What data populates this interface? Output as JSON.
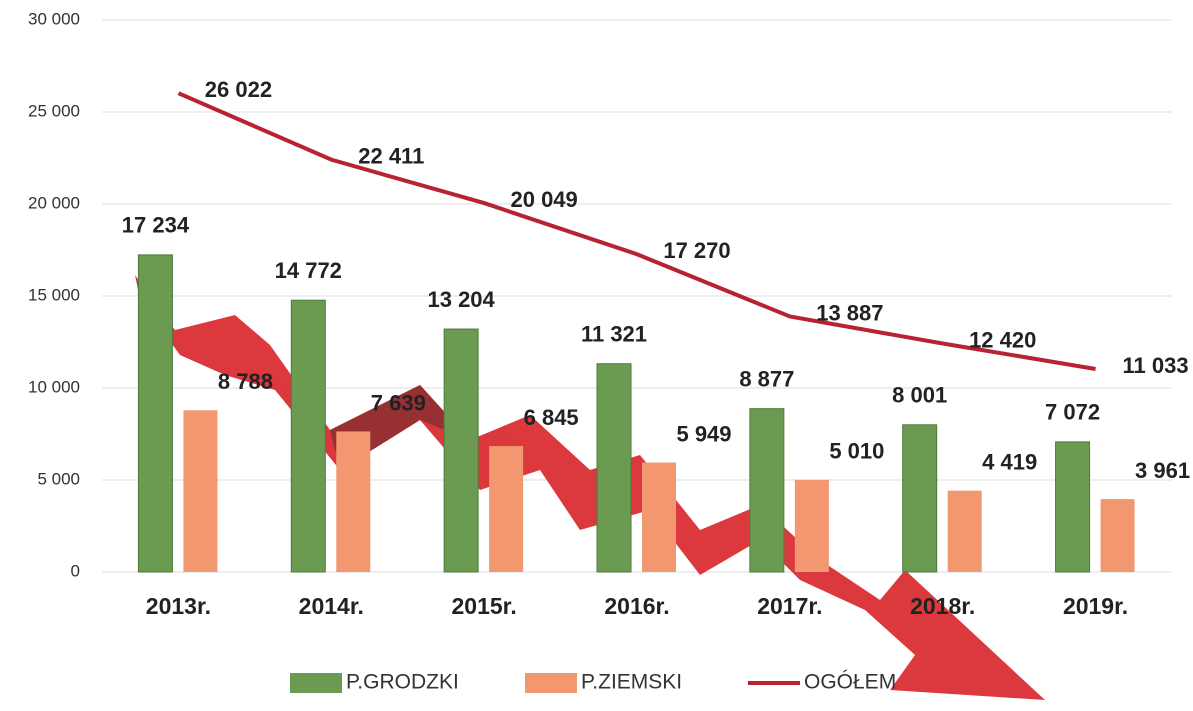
{
  "chart_data": {
    "type": "bar",
    "categories": [
      "2013r.",
      "2014r.",
      "2015r.",
      "2016r.",
      "2017r.",
      "2018r.",
      "2019r."
    ],
    "series": [
      {
        "name": "P.GRODZKI",
        "color": "#6b9b51",
        "type": "bar",
        "values": [
          17234,
          14772,
          13204,
          11321,
          8877,
          8001,
          7072
        ],
        "value_labels": [
          "17 234",
          "14 772",
          "13 204",
          "11 321",
          "8 877",
          "8 001",
          "7 072"
        ]
      },
      {
        "name": "P.ZIEMSKI",
        "color": "#f39770",
        "type": "bar",
        "values": [
          8788,
          7639,
          6845,
          5949,
          5010,
          4419,
          3961
        ],
        "value_labels": [
          "8 788",
          "7 639",
          "6 845",
          "5 949",
          "5 010",
          "4 419",
          "3 961"
        ]
      },
      {
        "name": "OGÓŁEM",
        "color": "#b82233",
        "type": "line",
        "values": [
          26022,
          22411,
          20049,
          17270,
          13887,
          12420,
          11033
        ],
        "value_labels": [
          "26 022",
          "22 411",
          "20 049",
          "17 270",
          "13 887",
          "12 420",
          "11 033"
        ]
      }
    ],
    "ylim": [
      0,
      30000
    ],
    "yticks": [
      0,
      {
        "value": 5000,
        "label": "5 000"
      },
      {
        "value": 10000,
        "label": "10 000"
      },
      {
        "value": 15000,
        "label": "15 000"
      },
      {
        "value": 20000,
        "label": "20 000"
      },
      {
        "value": 25000,
        "label": "25 000"
      },
      {
        "value": 30000,
        "label": "30 000"
      }
    ],
    "grid": true,
    "legend": "bottom"
  }
}
